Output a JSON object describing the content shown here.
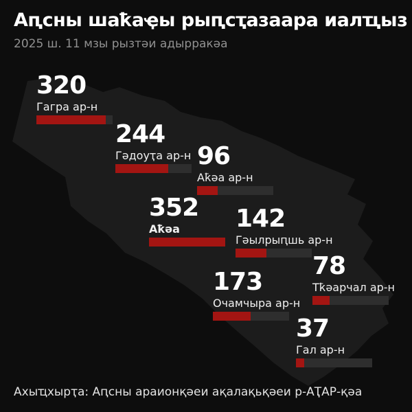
{
  "colors": {
    "background": "#0d0d0d",
    "map_silhouette": "#1c1c1c",
    "bar_fill": "#a31512",
    "bar_track": "#2e2e2e",
    "number_text": "#ffffff",
    "label_text": "#f0f0f0",
    "subtitle_text": "#919191",
    "footer_text": "#e3e3e3"
  },
  "chart_data": {
    "type": "bar",
    "orientation": "horizontal",
    "title": "Аԥсны шаҟаҿы рыԥсҭазаара иалҵыз",
    "subtitle": "2025 ш. 11 мзы рызтәи адырракәа",
    "source": "Ахыҵхырҭа: Аԥсны араионқәеи ақалақьқәеи р-АҬАР-қәа",
    "max_value": 352,
    "legend": "none",
    "grid": false,
    "background_graphic": "map-silhouette-of-abkhazia",
    "categories": [
      "Гагра ар-н",
      "Гәдоуҭа ар-н",
      "Аҟәа ар-н",
      "Аҟәа",
      "Гәылрыԥшь ар-н",
      "Очамчыра ар-н",
      "Тҟәарчал ар-н",
      "Гал ар-н"
    ],
    "values": [
      320,
      244,
      96,
      352,
      142,
      173,
      78,
      37
    ]
  }
}
